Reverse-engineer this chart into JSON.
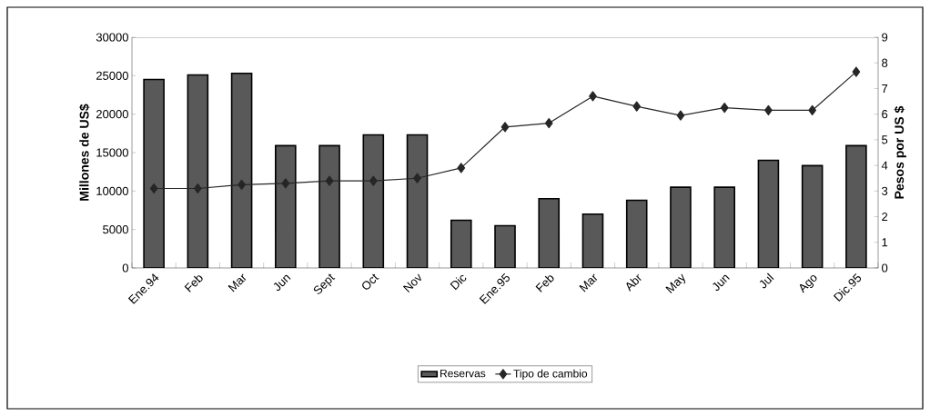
{
  "chart_data": {
    "type": "bar",
    "ylabel": "Millones de US$",
    "y2label": "Pesos por US $",
    "categories": [
      "Ene.94",
      "Feb",
      "Mar",
      "Jun",
      "Sept",
      "Oct",
      "Nov",
      "Dic",
      "Ene.95",
      "Feb",
      "Mar",
      "Abr",
      "May",
      "Jun",
      "Jul",
      "Ago",
      "Dic.95"
    ],
    "series": [
      {
        "name": "Reservas",
        "color": "#595959",
        "values": [
          24500,
          25100,
          25300,
          15900,
          15900,
          17300,
          17300,
          6200,
          5500,
          9000,
          7000,
          8800,
          10500,
          10500,
          14000,
          13300,
          15900
        ]
      },
      {
        "name": "Tipo de cambio",
        "type": "line",
        "axis": "y2",
        "color": "#262626",
        "marker": "diamond",
        "values": [
          3.1,
          3.1,
          3.25,
          3.3,
          3.4,
          3.4,
          3.5,
          3.9,
          5.5,
          5.65,
          6.7,
          6.3,
          5.95,
          6.25,
          6.15,
          6.15,
          7.65
        ]
      }
    ],
    "ylim": [
      0,
      30000
    ],
    "yticks": [
      0,
      5000,
      10000,
      15000,
      20000,
      25000,
      30000
    ],
    "y2lim": [
      0,
      9
    ],
    "y2ticks": [
      0,
      1,
      2,
      3,
      4,
      5,
      6,
      7,
      8,
      9
    ],
    "legend": "bottom"
  }
}
